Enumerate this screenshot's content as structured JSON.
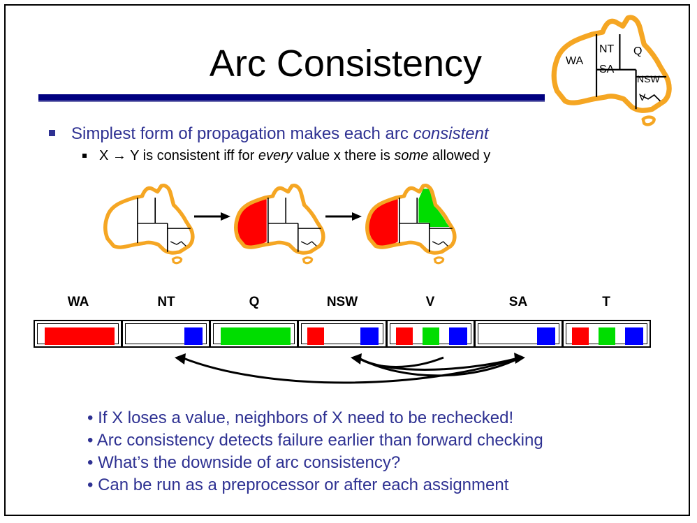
{
  "slide": {
    "title": "Arc Consistency",
    "bullet_main": "Simplest form of propagation makes each arc ",
    "bullet_main_em": "consistent",
    "sub_parts": {
      "a": "X ",
      "arrow": "→",
      "b": " Y is consistent iff for ",
      "every": "every",
      "c": " value x there is ",
      "some": "some",
      "d": " allowed y"
    }
  },
  "map_labels": {
    "wa": "WA",
    "nt": "NT",
    "q": "Q",
    "sa": "SA",
    "nsw": "NSW",
    "v": "V"
  },
  "colors": {
    "red": "#ff0000",
    "green": "#00dd00",
    "blue": "#0000ff",
    "outline": "#f5a623",
    "title_rule": "#000080",
    "text_blue": "#2e3192"
  },
  "variables": [
    {
      "name": "WA",
      "values": [
        "red"
      ],
      "wide": true
    },
    {
      "name": "NT",
      "values": [
        "blue"
      ]
    },
    {
      "name": "Q",
      "values": [
        "green"
      ],
      "wide": true
    },
    {
      "name": "NSW",
      "values": [
        "red",
        "blue"
      ]
    },
    {
      "name": "V",
      "values": [
        "red",
        "green",
        "blue"
      ]
    },
    {
      "name": "SA",
      "values": [
        "blue"
      ]
    },
    {
      "name": "T",
      "values": [
        "red",
        "green",
        "blue"
      ]
    }
  ],
  "notes": [
    "• If X loses a value, neighbors of X need to be rechecked!",
    "• Arc consistency detects failure earlier than forward checking",
    "• What’s the downside of arc consistency?",
    "• Can be run as a preprocessor or after each assignment"
  ]
}
